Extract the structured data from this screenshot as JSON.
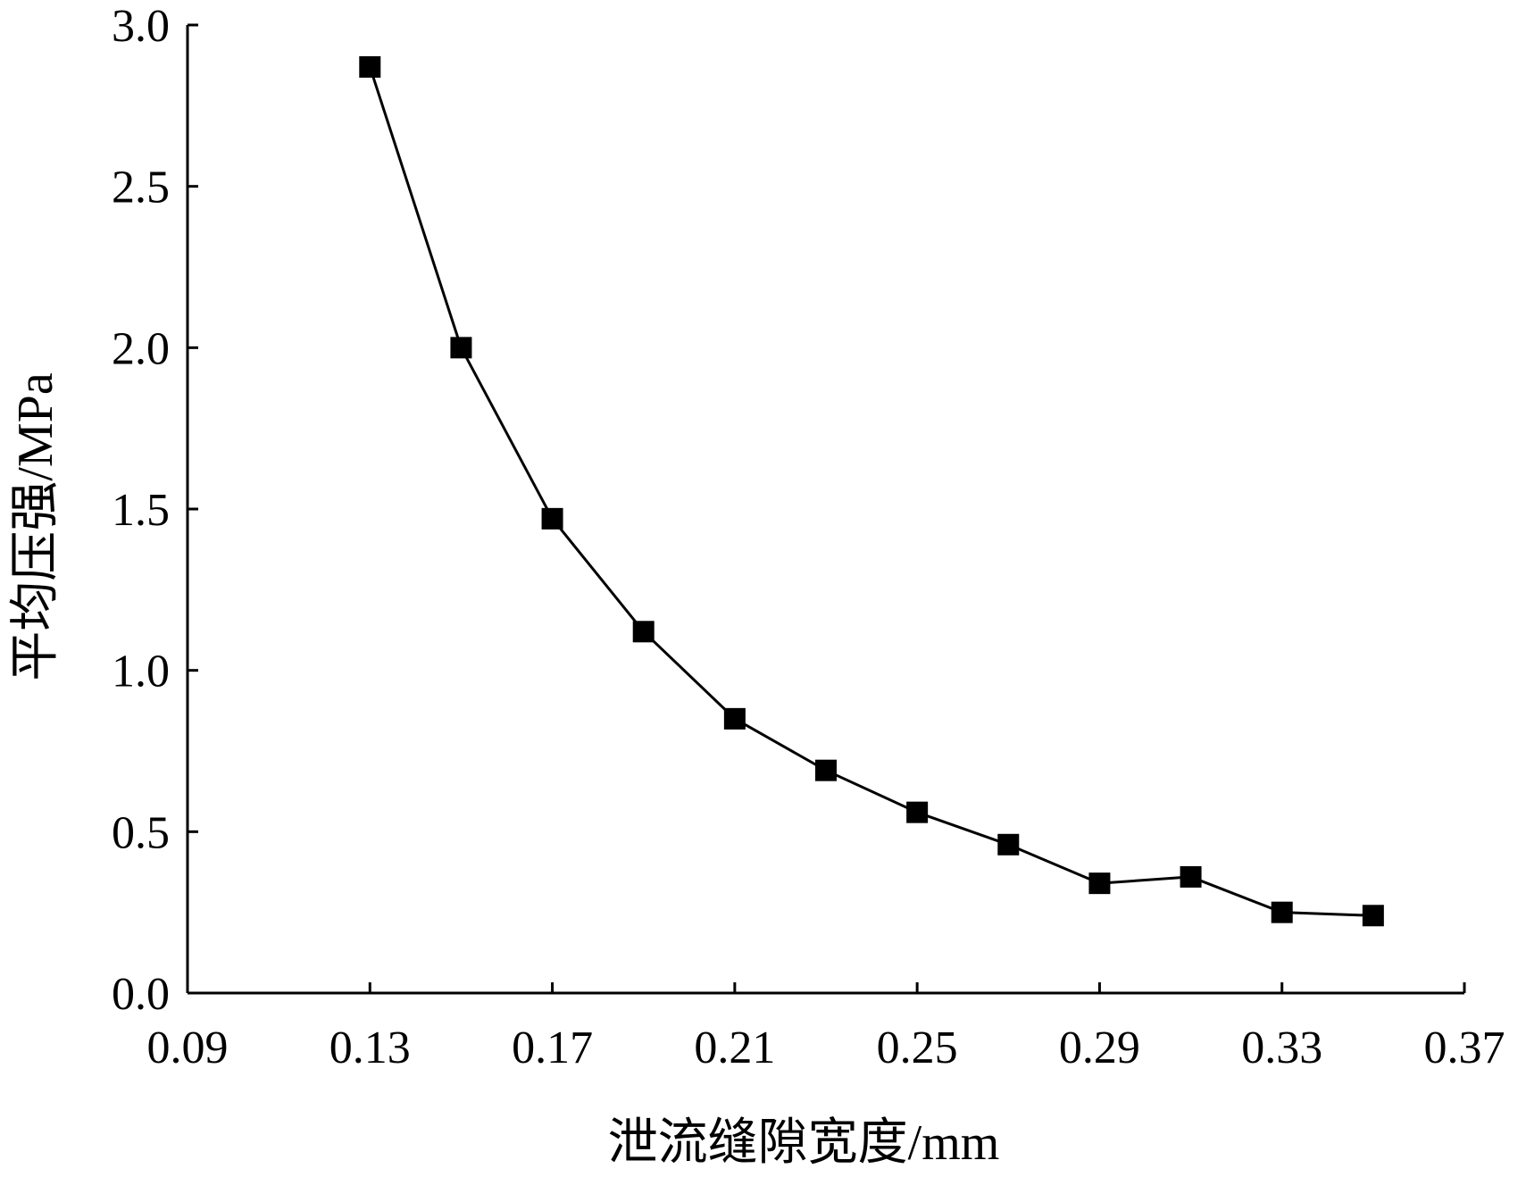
{
  "chart_data": {
    "type": "line",
    "title": "",
    "xlabel": "泄流缝隙宽度/mm",
    "ylabel": "平均压强/MPa",
    "xlim": [
      0.09,
      0.37
    ],
    "ylim": [
      0.0,
      3.0
    ],
    "xticks": [
      "0.09",
      "0.13",
      "0.17",
      "0.21",
      "0.25",
      "0.29",
      "0.33",
      "0.37"
    ],
    "yticks": [
      "0.0",
      "0.5",
      "1.0",
      "1.5",
      "2.0",
      "2.5",
      "3.0"
    ],
    "grid": false,
    "legend": "none",
    "series": [
      {
        "marker": "square",
        "color": "#000000",
        "x": [
          0.13,
          0.15,
          0.17,
          0.19,
          0.21,
          0.23,
          0.25,
          0.27,
          0.29,
          0.31,
          0.33,
          0.35
        ],
        "y": [
          2.87,
          2.0,
          1.47,
          1.12,
          0.85,
          0.69,
          0.56,
          0.46,
          0.34,
          0.36,
          0.25,
          0.24
        ]
      }
    ]
  }
}
